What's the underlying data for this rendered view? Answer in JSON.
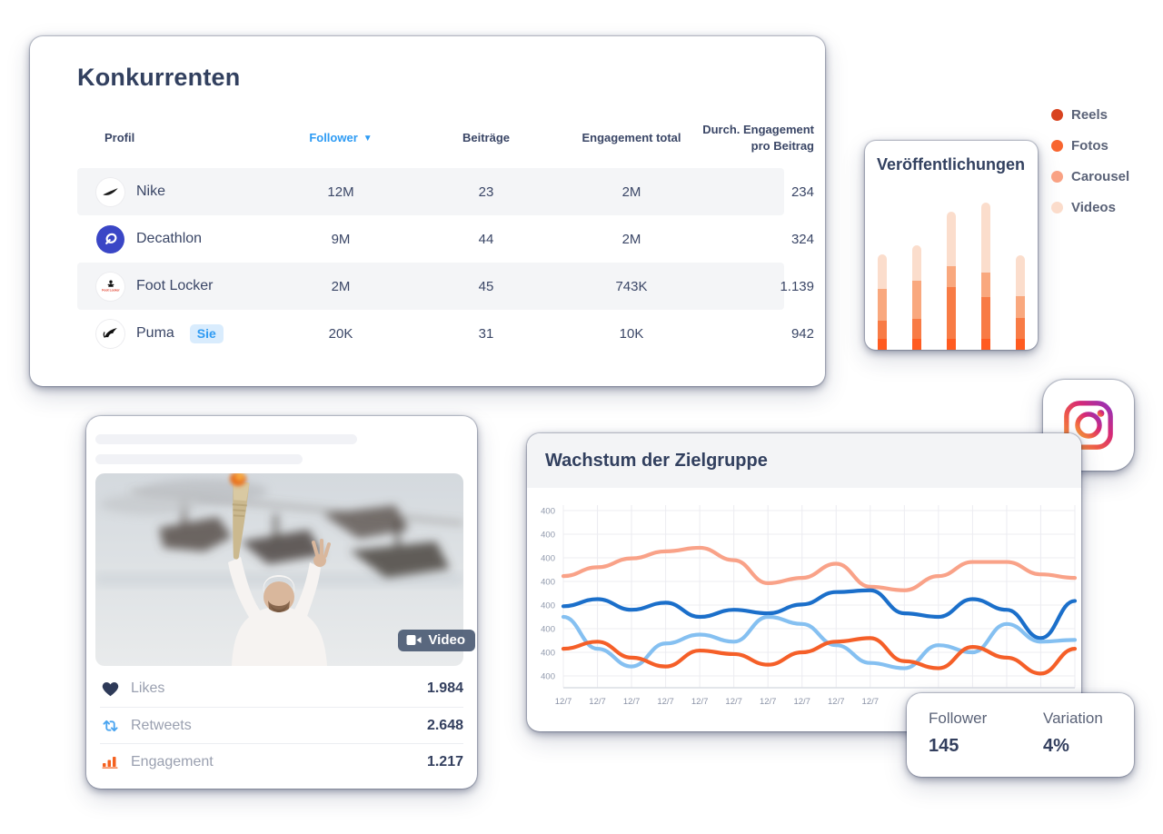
{
  "colors": {
    "accent_blue": "#2D9BF4",
    "navy_text": "#32405F",
    "muted_text": "#9AA0B0",
    "zebra_row": "#F4F5F7",
    "badge_bg": "#D9ECFD",
    "engagement_orange": "#F4611F",
    "retweet_blue": "#4BA5F0"
  },
  "icons": {
    "sort-desc-icon": "▼",
    "heart-icon": "♥",
    "retweet-icon": "⇄",
    "bar-chart-icon": "bar-chart",
    "video-camera-icon": "video-camera",
    "instagram-icon": "instagram-glyph"
  },
  "competitors": {
    "title": "Konkurrenten",
    "columns": {
      "profil": "Profil",
      "follower": "Follower",
      "beitraege": "Beiträge",
      "engagement": "Engagement total",
      "avg": "Durch. Engagement pro Beitrag"
    },
    "rows": [
      {
        "name": "Nike",
        "follower": "12M",
        "beitraege": "23",
        "engagement": "2M",
        "avg": "234"
      },
      {
        "name": "Decathlon",
        "follower": "9M",
        "beitraege": "44",
        "engagement": "2M",
        "avg": "324"
      },
      {
        "name": "Foot Locker",
        "follower": "2M",
        "beitraege": "45",
        "engagement": "743K",
        "avg": "1.139"
      },
      {
        "name": "Puma",
        "follower": "20K",
        "beitraege": "31",
        "engagement": "10K",
        "avg": "942",
        "badge": "Sie"
      }
    ]
  },
  "publications": {
    "title": "Veröffentlichungen",
    "legend": [
      {
        "label": "Reels",
        "color": "#D8431F"
      },
      {
        "label": "Fotos",
        "color": "#F8652F"
      },
      {
        "label": "Carousel",
        "color": "#F9A284"
      },
      {
        "label": "Videos",
        "color": "#FBDCCB"
      }
    ]
  },
  "post": {
    "media_badge": "Video",
    "stats": [
      {
        "label": "Likes",
        "value": "1.984"
      },
      {
        "label": "Retweets",
        "value": "2.648"
      },
      {
        "label": "Engagement",
        "value": "1.217"
      }
    ]
  },
  "growth": {
    "title": "Wachstum der Zielgruppe"
  },
  "summary": {
    "follower_label": "Follower",
    "follower_value": "145",
    "variation_label": "Variation",
    "variation_value": "4%"
  },
  "chart_data": [
    {
      "type": "bar",
      "title": "Veröffentlichungen",
      "stacked": true,
      "legend_position": "right",
      "axes": "none",
      "categories": [
        "bar1",
        "bar2",
        "bar3",
        "bar4",
        "bar5"
      ],
      "series": [
        {
          "name": "Reels",
          "color": "#FF5B20",
          "values": [
            12,
            12,
            12,
            12,
            12
          ]
        },
        {
          "name": "Fotos",
          "color": "#F87B45",
          "values": [
            20,
            22,
            57,
            46,
            23
          ]
        },
        {
          "name": "Carousel",
          "color": "#F9A87E",
          "values": [
            35,
            42,
            23,
            27,
            24
          ]
        },
        {
          "name": "Videos",
          "color": "#FBDDCC",
          "values": [
            38,
            39,
            60,
            77,
            45
          ]
        }
      ],
      "unit": "px-height"
    },
    {
      "type": "line",
      "title": "Wachstum der Zielgruppe",
      "grid": true,
      "x_tick_labels": [
        "12/7",
        "12/7",
        "12/7",
        "12/7",
        "12/7",
        "12/7",
        "12/7",
        "12/7",
        "12/7",
        "12/7"
      ],
      "y_tick_labels": [
        "400",
        "400",
        "400",
        "400",
        "400",
        "400",
        "400",
        "400"
      ],
      "ylim": [
        0,
        100
      ],
      "series": [
        {
          "name": "series-salmon",
          "color": "#F9A288",
          "values": [
            63,
            68,
            73,
            77,
            79,
            72,
            59,
            62,
            70,
            57,
            55,
            63,
            71,
            71,
            64,
            62
          ]
        },
        {
          "name": "series-dark-blue",
          "color": "#1B6FCA",
          "values": [
            46,
            50,
            44,
            48,
            40,
            44,
            42,
            47,
            54,
            55,
            42,
            40,
            50,
            44,
            28,
            49
          ]
        },
        {
          "name": "series-light-blue",
          "color": "#85C0F1",
          "values": [
            40,
            22,
            12,
            25,
            30,
            26,
            40,
            36,
            24,
            14,
            11,
            24,
            20,
            36,
            26,
            27
          ]
        },
        {
          "name": "series-orange",
          "color": "#F55F28",
          "values": [
            22,
            26,
            17,
            12,
            21,
            19,
            13,
            20,
            26,
            28,
            15,
            11,
            23,
            17,
            8,
            22
          ]
        }
      ]
    }
  ]
}
